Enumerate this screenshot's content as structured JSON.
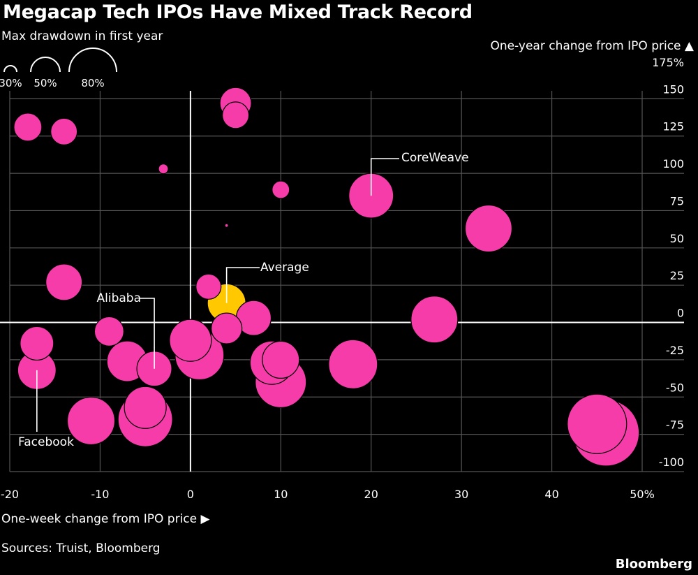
{
  "header": {
    "title": "Megacap Tech IPOs Have Mixed Track Record",
    "subtitle": "Max drawdown in first year"
  },
  "size_legend": [
    "30%",
    "50%",
    "80%"
  ],
  "y_axis_note": "One-year change from IPO price ▲",
  "x_axis_note": "One-week change from IPO price ▶",
  "footer": {
    "source": "Sources: Truist, Bloomberg",
    "brand": "Bloomberg"
  },
  "colors": {
    "bubble": "#f53ca8",
    "highlight": "#ffc800",
    "grid": "#555555",
    "background": "#000000"
  },
  "chart_data": {
    "type": "scatter",
    "xlim": [
      -20,
      50
    ],
    "ylim": [
      -100,
      175
    ],
    "x_ticks": [
      "-20",
      "-10",
      "0",
      "10",
      "20",
      "30",
      "40",
      "50%"
    ],
    "y_ticks": [
      "175%",
      "150",
      "125",
      "100",
      "75",
      "50",
      "25",
      "0",
      "-25",
      "-50",
      "-75",
      "-100"
    ],
    "size_variable": "Max drawdown in first year",
    "points": [
      {
        "x": 5,
        "y": 147,
        "d": 45
      },
      {
        "x": 5,
        "y": 139,
        "d": 38
      },
      {
        "x": -18,
        "y": 131,
        "d": 40
      },
      {
        "x": -14,
        "y": 128,
        "d": 38
      },
      {
        "x": -3,
        "y": 103,
        "d": 14
      },
      {
        "x": 10,
        "y": 89,
        "d": 25
      },
      {
        "x": 20,
        "y": 85,
        "label": "CoreWeave",
        "d": 64
      },
      {
        "x": 33,
        "y": 63,
        "d": 67
      },
      {
        "x": 4,
        "y": 65,
        "d": 5
      },
      {
        "x": -14,
        "y": 27,
        "d": 52
      },
      {
        "x": 2,
        "y": 24,
        "d": 36
      },
      {
        "x": 4,
        "y": 13,
        "label": "Average",
        "highlight": true,
        "d": 55
      },
      {
        "x": 7,
        "y": 3,
        "d": 50
      },
      {
        "x": 27,
        "y": 2,
        "d": 67
      },
      {
        "x": -9,
        "y": -6,
        "d": 42
      },
      {
        "x": 4,
        "y": -4,
        "d": 44
      },
      {
        "x": 0,
        "y": -12,
        "d": 60
      },
      {
        "x": -17,
        "y": -14,
        "d": 48
      },
      {
        "x": 1,
        "y": -22,
        "d": 70
      },
      {
        "x": -7,
        "y": -26,
        "d": 58
      },
      {
        "x": 9,
        "y": -27,
        "d": 62
      },
      {
        "x": 10,
        "y": -25,
        "d": 53
      },
      {
        "x": 18,
        "y": -28,
        "d": 70
      },
      {
        "x": -4,
        "y": -31,
        "label": "Alibaba",
        "d": 50
      },
      {
        "x": -17,
        "y": -32,
        "label": "Facebook",
        "d": 55
      },
      {
        "x": 10,
        "y": -40,
        "d": 73
      },
      {
        "x": -5,
        "y": -57,
        "d": 60
      },
      {
        "x": -5,
        "y": -65,
        "d": 78
      },
      {
        "x": -11,
        "y": -66,
        "d": 68
      },
      {
        "x": 45,
        "y": -68,
        "d": 85
      },
      {
        "x": 46,
        "y": -74,
        "d": 95
      }
    ]
  }
}
